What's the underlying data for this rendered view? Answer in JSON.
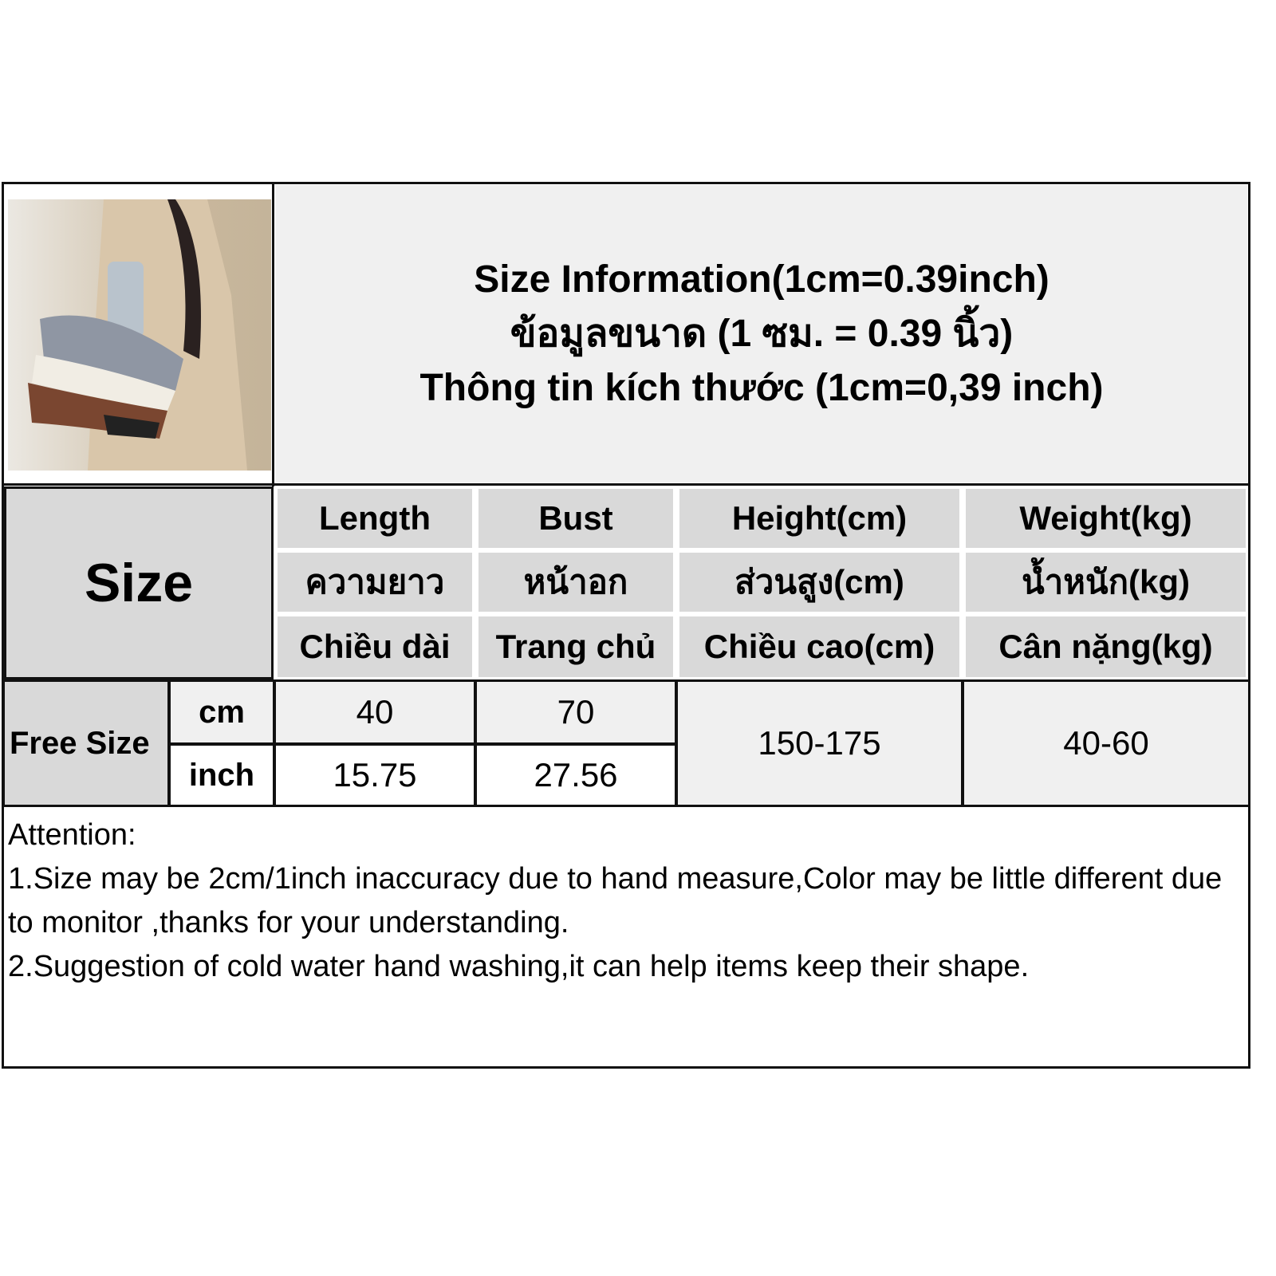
{
  "title": {
    "en": "Size Information(1cm=0.39inch)",
    "th": "ข้อมูลขนาด (1 ซม. = 0.39 นิ้ว)",
    "vi": "Thông tin kích thước (1cm=0,39 inch)"
  },
  "size_label": "Size",
  "columns": [
    {
      "en": "Length",
      "th": "ความยาว",
      "vi": "Chiều dài"
    },
    {
      "en": "Bust",
      "th": "หน้าอก",
      "vi": "Trang chủ"
    },
    {
      "en": "Height(cm)",
      "th": "ส่วนสูง(cm)",
      "vi": "Chiều cao(cm)"
    },
    {
      "en": "Weight(kg)",
      "th": "น้ำหนัก(kg)",
      "vi": "Cân nặng(kg)"
    }
  ],
  "row": {
    "size": "Free Size",
    "units": [
      "cm",
      "inch"
    ],
    "length": [
      "40",
      "15.75"
    ],
    "bust": [
      "70",
      "27.56"
    ],
    "height": "150-175",
    "weight": "40-60"
  },
  "attention": {
    "heading": "Attention:",
    "lines": [
      "1.Size may be 2cm/1inch inaccuracy due to hand measure,Color may be little different due to monitor ,thanks for your understanding.",
      "2.Suggestion of cold water hand washing,it can help items keep their shape."
    ]
  }
}
